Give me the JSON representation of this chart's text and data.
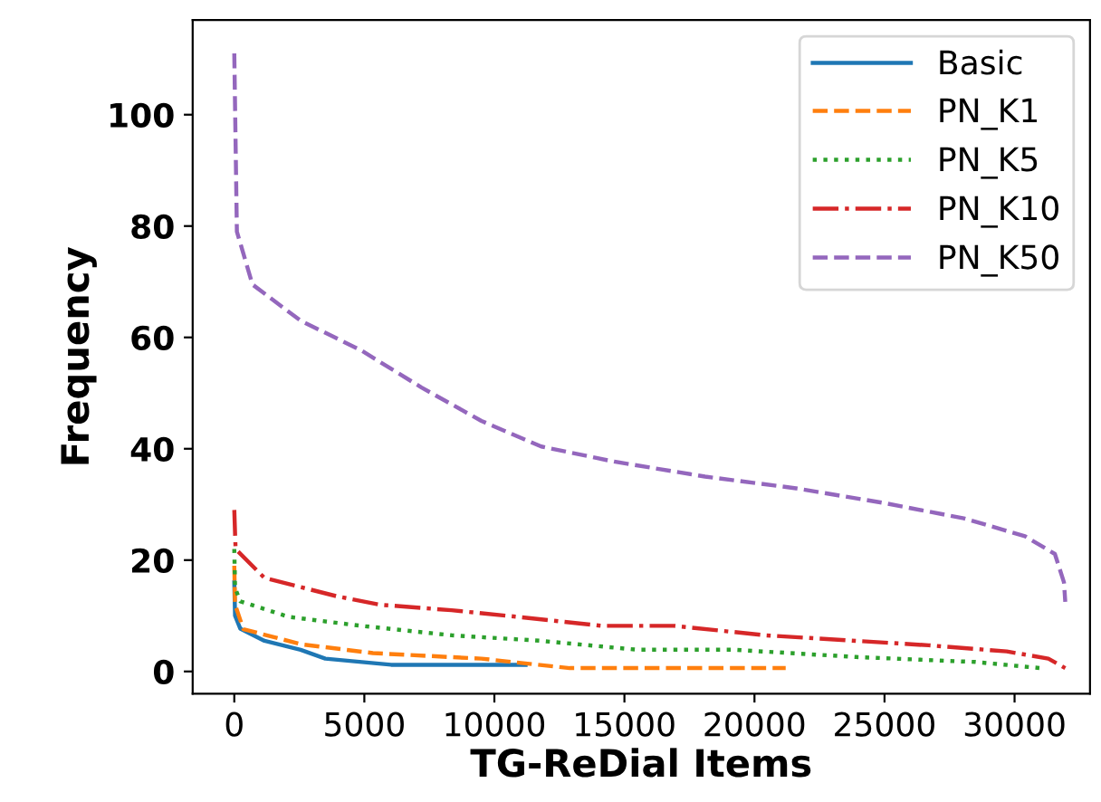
{
  "chart_data": {
    "type": "line",
    "xlabel": "TG-ReDial Items",
    "ylabel": "Frequency",
    "xlim": [
      -1600,
      32900
    ],
    "ylim": [
      -4,
      117
    ],
    "xticks": [
      0,
      5000,
      10000,
      15000,
      20000,
      25000,
      30000
    ],
    "yticks": [
      0,
      20,
      40,
      60,
      80,
      100
    ],
    "grid": false,
    "legend": "top right",
    "marker": "none",
    "series": [
      {
        "name": "Basic",
        "color": "#1f77b4",
        "line_style": "solid",
        "x": [
          0,
          30,
          230,
          1160,
          2550,
          3500,
          6030,
          11200
        ],
        "values": [
          16,
          10,
          7.7,
          5.5,
          3.9,
          2.3,
          1.2,
          1.2
        ]
      },
      {
        "name": "PN_K1",
        "color": "#ff7f0e",
        "line_style": "dashed",
        "x": [
          0,
          30,
          350,
          2550,
          5330,
          9500,
          12900,
          21200
        ],
        "values": [
          19,
          12,
          7.6,
          4.9,
          3.3,
          2.3,
          0.6,
          0.6
        ]
      },
      {
        "name": "PN_K5",
        "color": "#2ca02c",
        "line_style": "dotted",
        "x": [
          0,
          30,
          230,
          2100,
          4870,
          8350,
          11800,
          15500,
          19200,
          23900,
          28500,
          31000
        ],
        "values": [
          22,
          15,
          12.6,
          9.8,
          8.2,
          6.5,
          5.5,
          3.9,
          3.9,
          2.6,
          1.7,
          0.6
        ]
      },
      {
        "name": "PN_K10",
        "color": "#d62728",
        "line_style": "dashdot",
        "x": [
          0,
          50,
          1160,
          3950,
          5570,
          8350,
          10900,
          14100,
          16900,
          20400,
          23900,
          26700,
          29700,
          31300,
          31950
        ],
        "values": [
          29,
          22,
          16.8,
          13.5,
          12,
          11,
          9.8,
          8.2,
          8.2,
          6.5,
          5.5,
          4.7,
          3.6,
          2.3,
          0.6
        ]
      },
      {
        "name": "PN_K50",
        "color": "#9467bd",
        "line_style": "dashed",
        "x": [
          0,
          100,
          700,
          2550,
          4870,
          7200,
          9500,
          11800,
          14600,
          18100,
          21600,
          25050,
          28050,
          30400,
          31550,
          31900,
          31950
        ],
        "values": [
          111,
          79,
          69.5,
          63,
          57.7,
          51,
          45,
          40.4,
          37.7,
          35,
          32.9,
          30.2,
          27.5,
          24.3,
          21.1,
          16,
          12.5
        ]
      }
    ]
  }
}
